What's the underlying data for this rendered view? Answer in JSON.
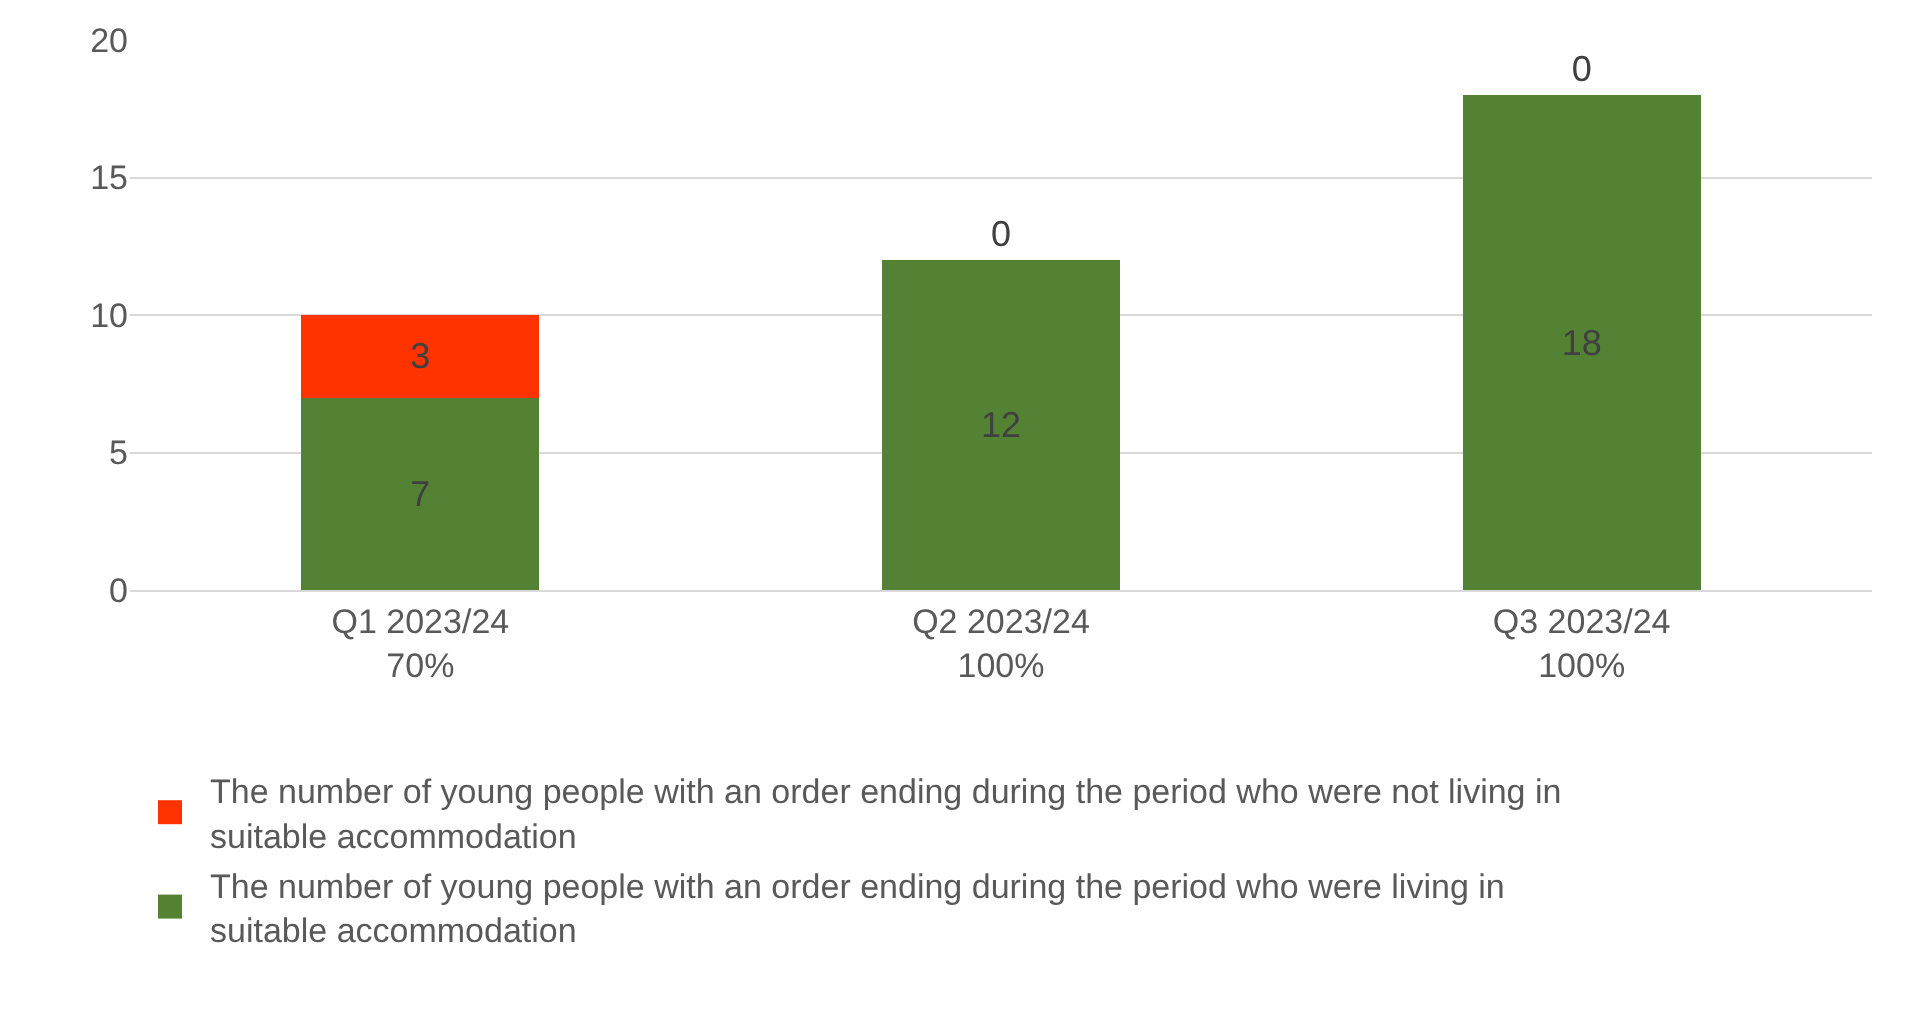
{
  "chart_data": {
    "type": "bar",
    "stacked": true,
    "categories": [
      "Q1 2023/24\n70%",
      "Q2 2023/24\n100%",
      "Q3 2023/24\n100%"
    ],
    "series": [
      {
        "name": "The number of young people with an order ending during the period who were living in suitable accommodation",
        "color": "#548235",
        "values": [
          7,
          12,
          18
        ]
      },
      {
        "name": "The number of young people with an order ending during the period who were not living in suitable accommodation",
        "color": "#ff3300",
        "values": [
          3,
          0,
          0
        ]
      }
    ],
    "ylim": [
      0,
      20
    ],
    "yticks": [
      0,
      5,
      10,
      15,
      20
    ],
    "grid": "y",
    "legend": "bottom",
    "data_labels": true
  }
}
